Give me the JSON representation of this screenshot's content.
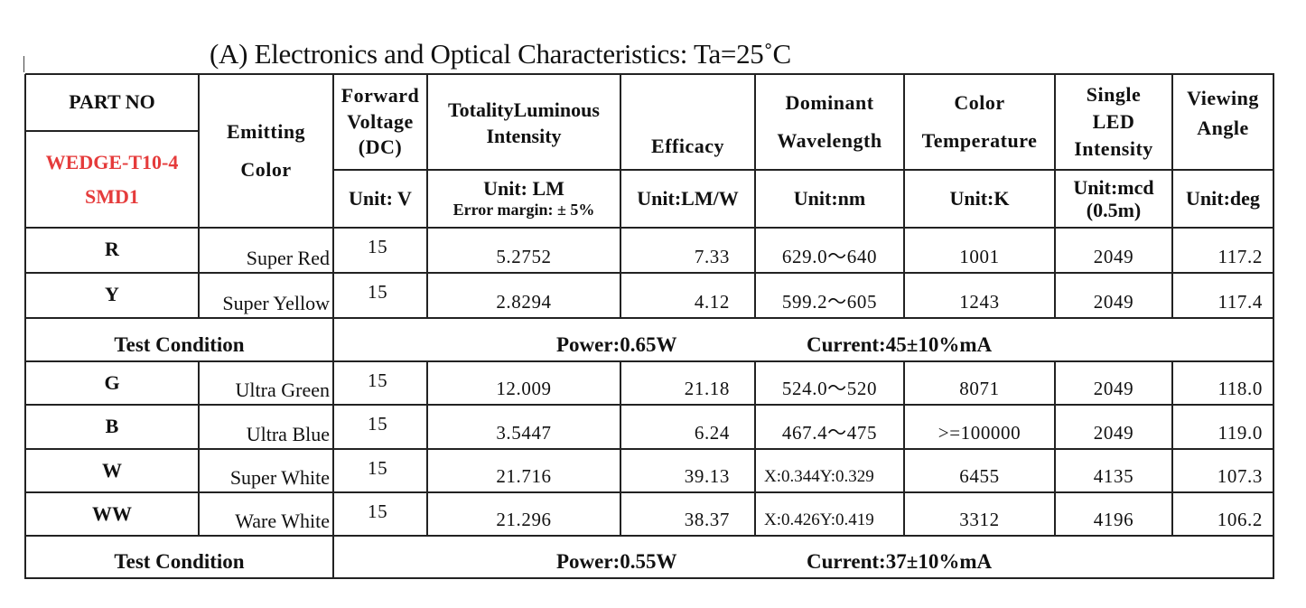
{
  "title": "(A) Electronics and Optical Characteristics: Ta=25˚C",
  "part": {
    "label": "PART NO",
    "number_line1": "WEDGE-T10-4",
    "number_line2": "SMD1",
    "number_color": "#e53b3b"
  },
  "headers": {
    "emitting": [
      "Emitting",
      "Color"
    ],
    "forward_voltage": [
      "Forward",
      "Voltage",
      "(DC)"
    ],
    "luminous": [
      "TotalityLuminous",
      "Intensity"
    ],
    "efficacy": "Efficacy",
    "wavelength": [
      "Dominant",
      "Wavelength"
    ],
    "color_temp": [
      "Color",
      "Temperature"
    ],
    "single_led": [
      "Single",
      "LED",
      "Intensity"
    ],
    "viewing": [
      "Viewing",
      "Angle"
    ]
  },
  "units": {
    "forward_voltage": "Unit: V",
    "luminous": "Unit: LM",
    "luminous_note": "Error margin: ± 5%",
    "efficacy": "Unit:LM/W",
    "wavelength": "Unit:nm",
    "color_temp": "Unit:K",
    "single_led": [
      "Unit:mcd",
      "(0.5m)"
    ],
    "viewing": "Unit:deg"
  },
  "group1": {
    "rows": [
      {
        "code": "R",
        "color": "Super Red",
        "voltage": "15",
        "lm": "5.2752",
        "efficacy": "7.33",
        "wavelength": "629.0～640",
        "cct": "1001",
        "mcd": "2049",
        "angle": "117.2"
      },
      {
        "code": "Y",
        "color": "Super Yellow",
        "voltage": "15",
        "lm": "2.8294",
        "efficacy": "4.12",
        "wavelength": "599.2～605",
        "cct": "1243",
        "mcd": "2049",
        "angle": "117.4"
      }
    ],
    "test_condition": {
      "label": "Test Condition",
      "power": "Power:0.65W",
      "current": "Current:45±10%mA"
    }
  },
  "group2": {
    "rows": [
      {
        "code": "G",
        "color": "Ultra Green",
        "voltage": "15",
        "lm": "12.009",
        "efficacy": "21.18",
        "wavelength": "524.0～520",
        "cct": "8071",
        "mcd": "2049",
        "angle": "118.0"
      },
      {
        "code": "B",
        "color": "Ultra Blue",
        "voltage": "15",
        "lm": "3.5447",
        "efficacy": "6.24",
        "wavelength": "467.4～475",
        "cct": ">=100000",
        "mcd": "2049",
        "angle": "119.0"
      },
      {
        "code": "W",
        "color": "Super White",
        "voltage": "15",
        "lm": "21.716",
        "efficacy": "39.13",
        "wavelength": "X:0.344Y:0.329",
        "cct": "6455",
        "mcd": "4135",
        "angle": "107.3"
      },
      {
        "code": "WW",
        "color": "Ware White",
        "voltage": "15",
        "lm": "21.296",
        "efficacy": "38.37",
        "wavelength": "X:0.426Y:0.419",
        "cct": "3312",
        "mcd": "4196",
        "angle": "106.2"
      }
    ],
    "test_condition": {
      "label": "Test Condition",
      "power": "Power:0.55W",
      "current": "Current:37±10%mA"
    }
  }
}
